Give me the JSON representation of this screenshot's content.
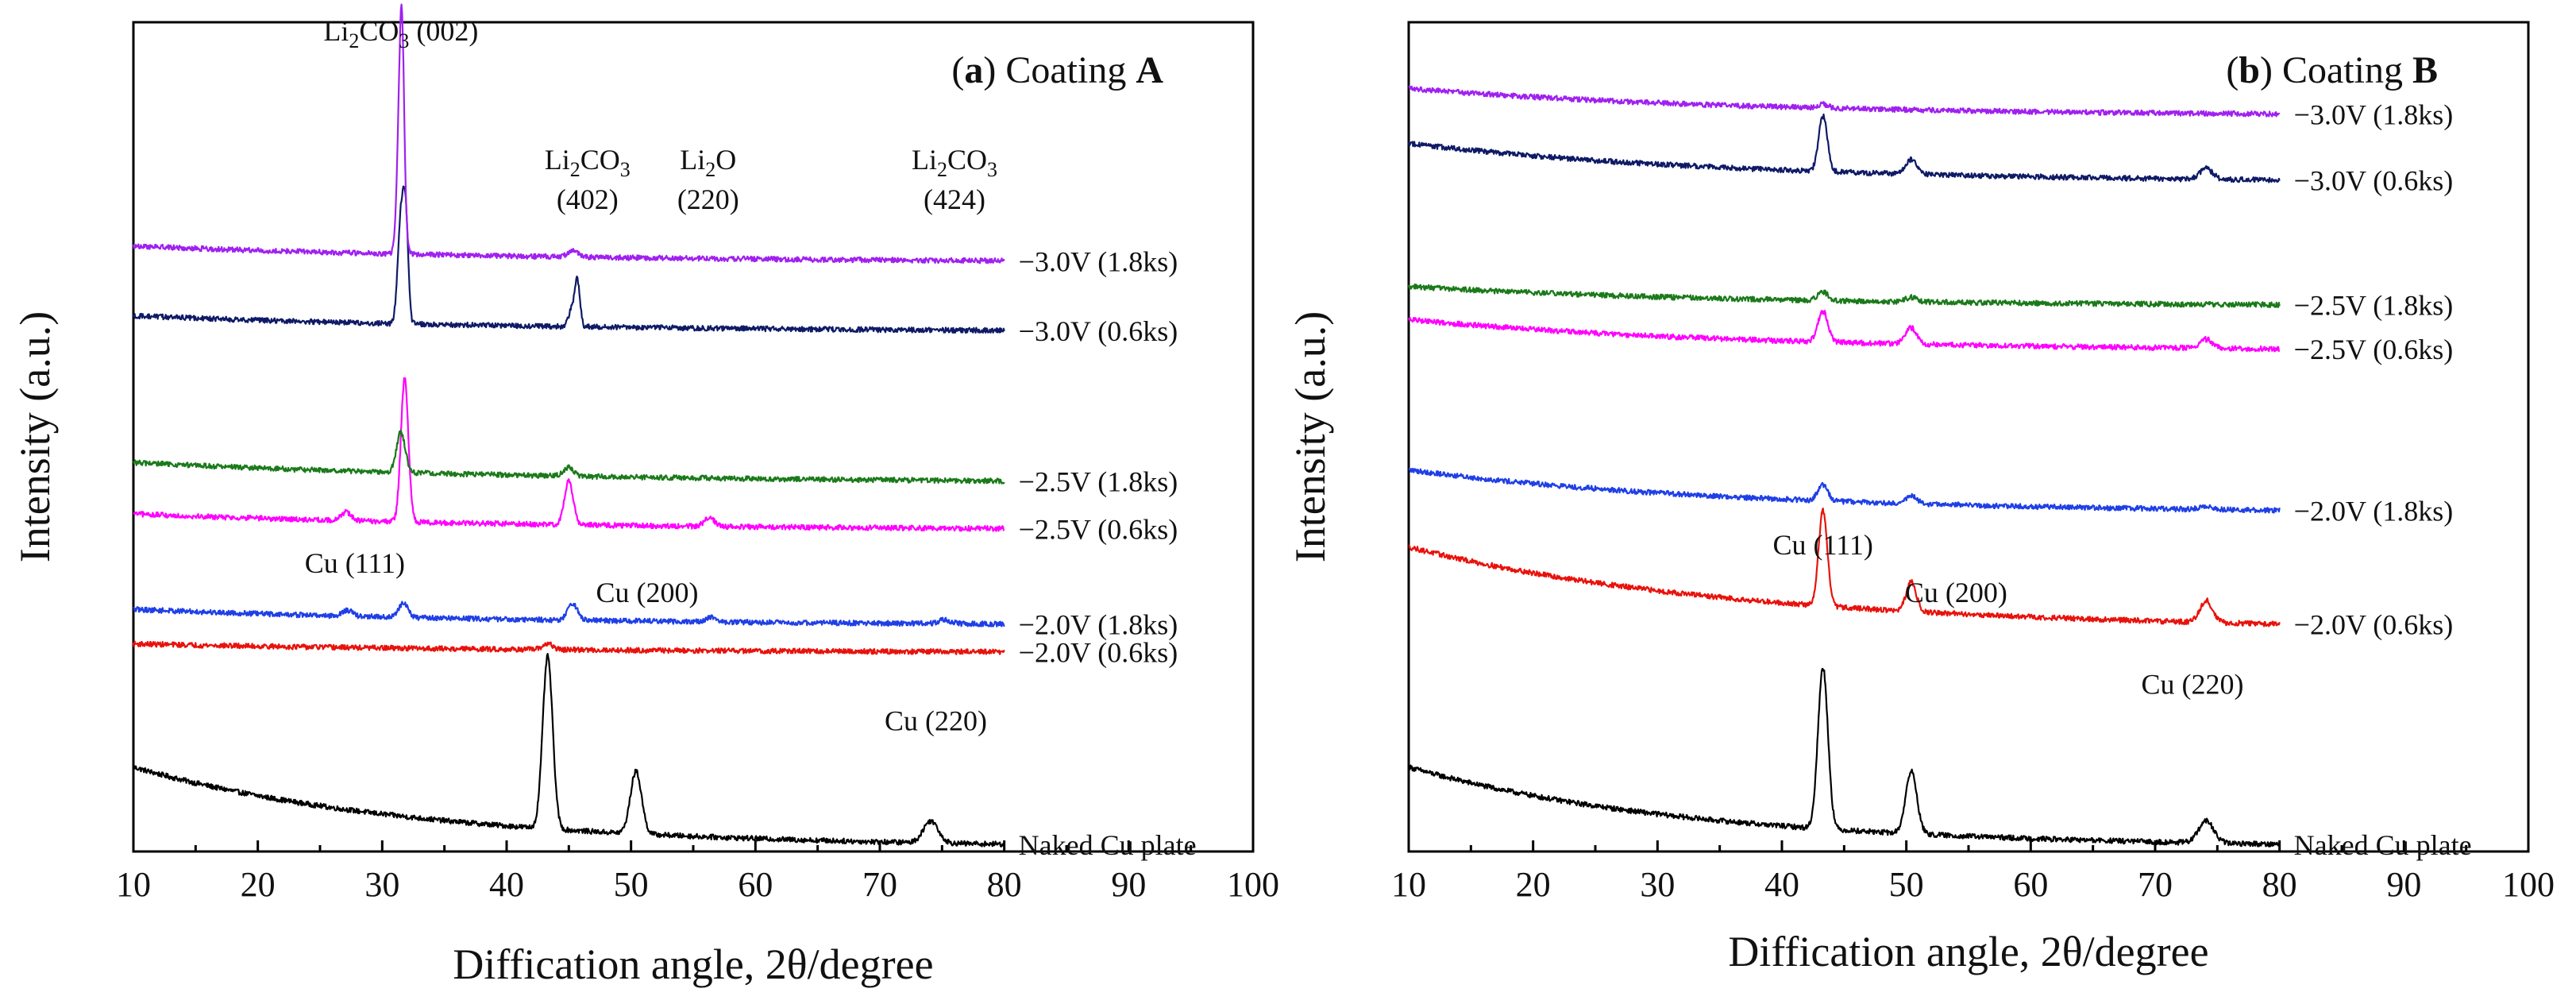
{
  "chart_data": [
    {
      "type": "line",
      "panel_id": "a",
      "title": {
        "prefix": "(",
        "letter": "a",
        "middle": ") Coating ",
        "name": "A"
      },
      "xlabel": "Diffication angle, 2θ/degree",
      "ylabel": "Intensity (a.u.)",
      "xlim": [
        10,
        100
      ],
      "x_ticks": [
        10,
        20,
        30,
        40,
        50,
        60,
        70,
        80,
        90,
        100
      ],
      "x_range_data": [
        10,
        80
      ],
      "ylim": [
        -0.1,
        11.2
      ],
      "y_ticks_visible": false,
      "peak_width": 0.45,
      "series": [
        {
          "name": "Naked Cu plate",
          "color": "#000000",
          "label_color": "#000000",
          "baseline_start": 1.05,
          "baseline_end": 0.0,
          "decay": 22,
          "peaks": [
            [
              43.3,
              2.35,
              0.4
            ],
            [
              50.4,
              0.85,
              0.45
            ],
            [
              74.1,
              0.3,
              0.6
            ]
          ]
        },
        {
          "name": "−2.0V (0.6ks)",
          "color": "#e8120c",
          "label_color": "#e8120c",
          "baseline_start": 2.73,
          "baseline_end": 2.62,
          "decay": 30,
          "peaks": [
            [
              43.3,
              0.08,
              0.4
            ]
          ]
        },
        {
          "name": "−2.0V (1.8ks)",
          "color": "#1f3fe6",
          "label_color": "#1f3fe6",
          "baseline_start": 3.2,
          "baseline_end": 3.0,
          "decay": 30,
          "peaks": [
            [
              27.2,
              0.08,
              0.4
            ],
            [
              31.7,
              0.2,
              0.35
            ],
            [
              45.3,
              0.22,
              0.4
            ],
            [
              56.4,
              0.06,
              0.4
            ],
            [
              75.2,
              0.05,
              0.5
            ]
          ]
        },
        {
          "name": "−2.5V (0.6ks)",
          "color": "#ff00ff",
          "label_color": "#ff00ff",
          "baseline_start": 4.5,
          "baseline_end": 4.3,
          "decay": 30,
          "peaks": [
            [
              27.1,
              0.12,
              0.4
            ],
            [
              31.8,
              1.95,
              0.3
            ],
            [
              45.0,
              0.6,
              0.35
            ],
            [
              56.3,
              0.12,
              0.4
            ]
          ]
        },
        {
          "name": "−2.5V (1.8ks)",
          "color": "#1a7a1a",
          "label_color": "#3b7d35",
          "baseline_start": 5.2,
          "baseline_end": 4.95,
          "decay": 30,
          "peaks": [
            [
              31.5,
              0.55,
              0.35
            ],
            [
              45.0,
              0.12,
              0.4
            ]
          ]
        },
        {
          "name": "−3.0V (0.6ks)",
          "color": "#0f1a66",
          "label_color": "#1a2e80",
          "baseline_start": 7.2,
          "baseline_end": 7.0,
          "decay": 30,
          "peaks": [
            [
              31.5,
              1.45,
              0.25
            ],
            [
              31.9,
              1.3,
              0.2
            ],
            [
              45.3,
              0.25,
              0.3
            ],
            [
              45.7,
              0.55,
              0.2
            ]
          ]
        },
        {
          "name": "−3.0V (1.8ks)",
          "color": "#a020f0",
          "label_color": "#7a39b5",
          "baseline_start": 8.15,
          "baseline_end": 7.95,
          "decay": 30,
          "peaks": [
            [
              31.5,
              2.6,
              0.25
            ],
            [
              31.6,
              0.9,
              0.15
            ],
            [
              45.3,
              0.08,
              0.4
            ]
          ]
        }
      ],
      "annotations": [
        {
          "id": "cu111",
          "text": "Cu (111)",
          "x": 27.8,
          "y": 3.7
        },
        {
          "id": "cu200",
          "text": "Cu (200)",
          "x": 51.3,
          "y": 3.3
        },
        {
          "id": "cu220",
          "text": "Cu (220)",
          "x": 74.5,
          "y": 1.55
        },
        {
          "id": "li2co3_002",
          "main": "Li",
          "sub1": "2",
          "mid": "CO",
          "sub2": "3",
          "tail": " (002)",
          "x": 31.5,
          "y": 10.95
        },
        {
          "id": "li2co3_402",
          "main": "Li",
          "sub1": "2",
          "mid": "CO",
          "sub2": "3",
          "line2": "(402)",
          "x": 46.5,
          "y": 9.2
        },
        {
          "id": "li2o_220",
          "main": "Li",
          "sub1": "2",
          "mid": "O",
          "line2": "(220)",
          "x": 56.2,
          "y": 9.2
        },
        {
          "id": "li2co3_424",
          "main": "Li",
          "sub1": "2",
          "mid": "CO",
          "sub2": "3",
          "line2": "(424)",
          "x": 76.0,
          "y": 9.2
        }
      ]
    },
    {
      "type": "line",
      "panel_id": "b",
      "title": {
        "prefix": "(",
        "letter": "b",
        "middle": ") Coating ",
        "name": "B"
      },
      "xlabel": "Diffication angle, 2θ/degree",
      "ylabel": "Intensity (a.u.)",
      "xlim": [
        10,
        100
      ],
      "x_ticks": [
        10,
        20,
        30,
        40,
        50,
        60,
        70,
        80,
        90,
        100
      ],
      "x_range_data": [
        10,
        80
      ],
      "ylim": [
        -0.1,
        11.2
      ],
      "y_ticks_visible": false,
      "peak_width": 0.45,
      "series": [
        {
          "name": "Naked Cu plate",
          "color": "#000000",
          "label_color": "#000000",
          "baseline_start": 1.05,
          "baseline_end": 0.0,
          "decay": 22,
          "peaks": [
            [
              43.3,
              2.2,
              0.4
            ],
            [
              50.4,
              0.85,
              0.45
            ],
            [
              74.1,
              0.3,
              0.6
            ]
          ]
        },
        {
          "name": "−2.0V (0.6ks)",
          "color": "#e8120c",
          "label_color": "#e8120c",
          "baseline_start": 4.05,
          "baseline_end": 3.0,
          "decay": 25,
          "peaks": [
            [
              43.3,
              1.3,
              0.35
            ],
            [
              50.4,
              0.4,
              0.4
            ],
            [
              74.1,
              0.3,
              0.5
            ]
          ]
        },
        {
          "name": "−2.0V (1.8ks)",
          "color": "#1f3fe6",
          "label_color": "#1f3fe6",
          "baseline_start": 5.1,
          "baseline_end": 4.55,
          "decay": 25,
          "peaks": [
            [
              43.3,
              0.22,
              0.4
            ],
            [
              50.4,
              0.1,
              0.45
            ],
            [
              74.1,
              0.05,
              0.5
            ]
          ]
        },
        {
          "name": "−2.5V (0.6ks)",
          "color": "#ff00ff",
          "label_color": "#ff00ff",
          "baseline_start": 7.15,
          "baseline_end": 6.75,
          "decay": 25,
          "peaks": [
            [
              43.3,
              0.42,
              0.4
            ],
            [
              50.4,
              0.22,
              0.45
            ],
            [
              74.1,
              0.12,
              0.5
            ]
          ]
        },
        {
          "name": "−2.5V (1.8ks)",
          "color": "#1a7a1a",
          "label_color": "#3b7d35",
          "baseline_start": 7.6,
          "baseline_end": 7.35,
          "decay": 25,
          "peaks": [
            [
              43.3,
              0.12,
              0.4
            ],
            [
              50.4,
              0.06,
              0.45
            ]
          ]
        },
        {
          "name": "−3.0V (0.6ks)",
          "color": "#0f1a66",
          "label_color": "#1a2e80",
          "baseline_start": 9.55,
          "baseline_end": 9.05,
          "decay": 25,
          "peaks": [
            [
              43.3,
              0.75,
              0.35
            ],
            [
              50.4,
              0.2,
              0.45
            ],
            [
              74.1,
              0.15,
              0.5
            ]
          ]
        },
        {
          "name": "−3.0V (1.8ks)",
          "color": "#a020f0",
          "label_color": "#7a39b5",
          "baseline_start": 10.3,
          "baseline_end": 9.95,
          "decay": 25,
          "peaks": [
            [
              43.3,
              0.05,
              0.4
            ]
          ]
        }
      ],
      "annotations": [
        {
          "id": "cu111",
          "text": "Cu (111)",
          "x": 43.3,
          "y": 3.95
        },
        {
          "id": "cu200",
          "text": "Cu (200)",
          "x": 54.0,
          "y": 3.3
        },
        {
          "id": "cu220",
          "text": "Cu (220)",
          "x": 73.0,
          "y": 2.05
        }
      ]
    }
  ]
}
